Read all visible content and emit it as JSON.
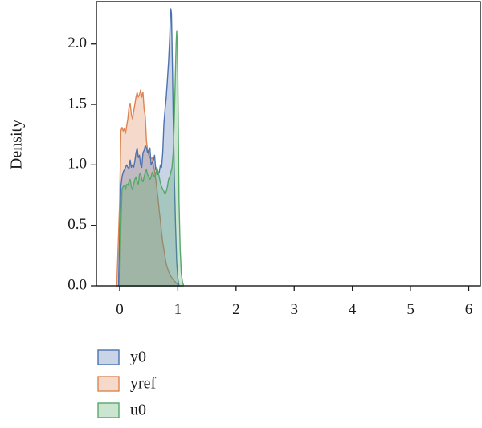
{
  "chart_data": {
    "type": "area",
    "title": "",
    "xlabel": "",
    "ylabel": "Density",
    "xlim": [
      -0.4,
      6.2
    ],
    "ylim": [
      0,
      2.35
    ],
    "xticks": [
      0,
      1,
      2,
      3,
      4,
      5,
      6
    ],
    "yticks": [
      0.0,
      0.5,
      1.0,
      1.5,
      2.0
    ],
    "ytick_labels": [
      "0.0",
      "0.5",
      "1.0",
      "1.5",
      "2.0"
    ],
    "grid": false,
    "legend_position": "bottom-left",
    "series": [
      {
        "name": "yref",
        "color": "#dd8452",
        "x": [
          -0.05,
          0.0,
          0.02,
          0.04,
          0.06,
          0.08,
          0.1,
          0.12,
          0.14,
          0.16,
          0.18,
          0.2,
          0.22,
          0.24,
          0.26,
          0.28,
          0.3,
          0.32,
          0.34,
          0.36,
          0.38,
          0.4,
          0.42,
          0.44,
          0.46,
          0.48,
          0.5,
          0.52,
          0.54,
          0.56,
          0.58,
          0.6,
          0.62,
          0.64,
          0.66,
          0.68,
          0.7,
          0.72,
          0.74,
          0.76,
          0.78,
          0.8,
          0.84,
          0.88,
          0.92,
          0.96,
          1.0,
          1.05
        ],
        "y": [
          0,
          0.7,
          1.28,
          1.31,
          1.28,
          1.3,
          1.26,
          1.32,
          1.38,
          1.48,
          1.51,
          1.42,
          1.38,
          1.44,
          1.5,
          1.56,
          1.6,
          1.56,
          1.58,
          1.62,
          1.56,
          1.6,
          1.46,
          1.4,
          1.2,
          1.12,
          1.08,
          1.06,
          1.05,
          1.06,
          1.0,
          0.95,
          0.88,
          0.8,
          0.72,
          0.62,
          0.54,
          0.44,
          0.36,
          0.3,
          0.24,
          0.18,
          0.12,
          0.08,
          0.05,
          0.03,
          0.01,
          0
        ]
      },
      {
        "name": "y0",
        "color": "#4c72b0",
        "x": [
          -0.02,
          0.0,
          0.02,
          0.04,
          0.06,
          0.08,
          0.1,
          0.12,
          0.14,
          0.16,
          0.18,
          0.2,
          0.22,
          0.24,
          0.26,
          0.28,
          0.3,
          0.32,
          0.34,
          0.36,
          0.38,
          0.4,
          0.42,
          0.44,
          0.46,
          0.48,
          0.5,
          0.52,
          0.54,
          0.56,
          0.58,
          0.6,
          0.62,
          0.64,
          0.66,
          0.68,
          0.7,
          0.72,
          0.74,
          0.76,
          0.78,
          0.8,
          0.82,
          0.84,
          0.86,
          0.87,
          0.88,
          0.89,
          0.9,
          0.91,
          0.92,
          0.94,
          0.96,
          0.98,
          1.0,
          1.02
        ],
        "y": [
          0,
          0.45,
          0.82,
          0.9,
          0.94,
          0.96,
          0.98,
          1.0,
          0.98,
          0.97,
          1.04,
          0.98,
          1.0,
          0.98,
          1.03,
          1.1,
          1.14,
          1.06,
          1.08,
          1.0,
          0.98,
          1.1,
          1.12,
          1.16,
          1.14,
          1.1,
          1.12,
          1.14,
          1.0,
          1.02,
          1.04,
          1.08,
          0.96,
          0.96,
          0.92,
          0.94,
          1.0,
          0.98,
          1.1,
          1.34,
          1.46,
          1.56,
          1.7,
          1.85,
          2.05,
          2.22,
          2.29,
          2.25,
          2.0,
          1.72,
          1.4,
          0.9,
          0.5,
          0.2,
          0.06,
          0
        ]
      },
      {
        "name": "u0",
        "color": "#55a868",
        "x": [
          0.0,
          0.02,
          0.04,
          0.06,
          0.08,
          0.1,
          0.12,
          0.14,
          0.16,
          0.18,
          0.2,
          0.22,
          0.24,
          0.26,
          0.28,
          0.3,
          0.32,
          0.34,
          0.36,
          0.38,
          0.4,
          0.42,
          0.44,
          0.46,
          0.48,
          0.5,
          0.52,
          0.54,
          0.56,
          0.58,
          0.6,
          0.62,
          0.64,
          0.66,
          0.68,
          0.7,
          0.72,
          0.74,
          0.76,
          0.78,
          0.8,
          0.82,
          0.84,
          0.86,
          0.88,
          0.9,
          0.92,
          0.94,
          0.96,
          0.97,
          0.98,
          0.99,
          1.0,
          1.01,
          1.02,
          1.04,
          1.06,
          1.08,
          1.1
        ],
        "y": [
          0,
          0.5,
          0.8,
          0.82,
          0.83,
          0.8,
          0.84,
          0.83,
          0.86,
          0.88,
          0.82,
          0.8,
          0.84,
          0.88,
          0.9,
          0.86,
          0.84,
          0.92,
          0.93,
          0.88,
          0.86,
          0.9,
          0.94,
          0.96,
          0.92,
          0.9,
          0.88,
          0.9,
          0.94,
          0.92,
          0.9,
          0.92,
          0.98,
          0.94,
          0.9,
          0.85,
          0.82,
          0.8,
          0.78,
          0.76,
          0.78,
          0.82,
          0.88,
          0.9,
          0.94,
          0.98,
          1.1,
          1.4,
          1.8,
          2.0,
          2.11,
          2.0,
          1.7,
          1.2,
          0.7,
          0.3,
          0.1,
          0.03,
          0
        ]
      }
    ]
  }
}
